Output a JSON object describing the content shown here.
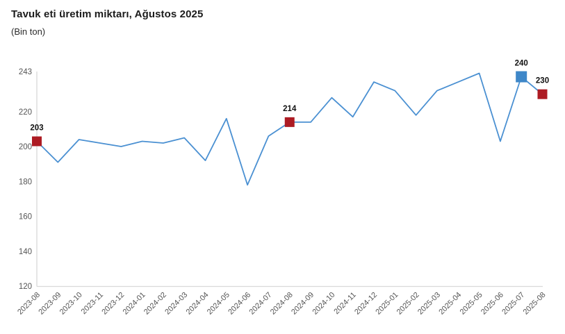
{
  "header": {
    "title": "Tavuk eti üretim miktarı, Ağustos 2025",
    "subtitle": "(Bin ton)"
  },
  "chart_data": {
    "type": "line",
    "title": "Tavuk eti üretim miktarı, Ağustos 2025",
    "subtitle": "(Bin ton)",
    "categories": [
      "2023-08",
      "2023-09",
      "2023-10",
      "2023-11",
      "2023-12",
      "2024-01",
      "2024-02",
      "2024-03",
      "2024-04",
      "2024-05",
      "2024-06",
      "2024-07",
      "2024-08",
      "2024-09",
      "2024-10",
      "2024-11",
      "2024-12",
      "2025-01",
      "2025-02",
      "2025-03",
      "2025-04",
      "2025-05",
      "2025-06",
      "2025-07",
      "2025-08"
    ],
    "values": [
      203,
      191,
      204,
      202,
      200,
      203,
      202,
      205,
      192,
      216,
      178,
      206,
      214,
      214,
      228,
      217,
      237,
      232,
      218,
      232,
      237,
      242,
      203,
      240,
      230
    ],
    "ylim": [
      120,
      243
    ],
    "y_ticks": [
      120,
      140,
      160,
      180,
      200,
      220,
      243
    ],
    "grid": false,
    "legend": "none",
    "labeled_points": [
      {
        "category": "2023-08",
        "value": 203,
        "label": "203",
        "marker_color": "#ad1b23",
        "marker_size": 13
      },
      {
        "category": "2024-08",
        "value": 214,
        "label": "214",
        "marker_color": "#ad1b23",
        "marker_size": 13
      },
      {
        "category": "2025-07",
        "value": 240,
        "label": "240",
        "marker_color": "#3e87c8",
        "marker_size": 15
      },
      {
        "category": "2025-08",
        "value": 230,
        "label": "230",
        "marker_color": "#ad1b23",
        "marker_size": 13
      }
    ],
    "colors": {
      "line": "#4a90d2",
      "axis": "#d9d9d9",
      "tick_labels": "#555555",
      "data_labels": "#111111"
    }
  }
}
